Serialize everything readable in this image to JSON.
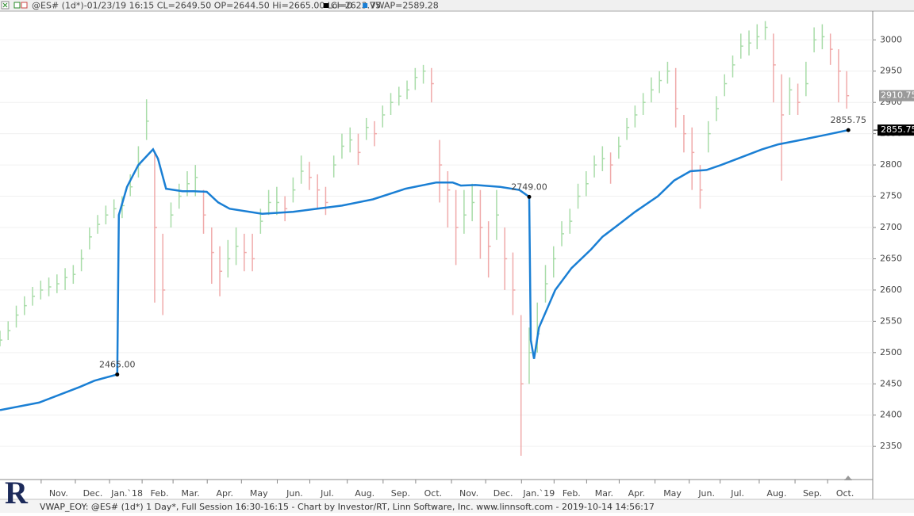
{
  "header": {
    "status": "@ES# (1d*)-01/23/19 16:15 CL=2649.50 OP=2644.50 Hi=2665.00 Lo=2623.75",
    "legend": [
      {
        "label": "CI=0",
        "color": "#000000"
      },
      {
        "label": "VWAP=2589.28",
        "color": "#1a7fd4"
      }
    ]
  },
  "footer": {
    "logo": "R",
    "caption": "VWAP_EOY: @ES# (1d*) 1 Day*, Full Session 16:30-16:15 - Chart by Investor/RT, Linn Software, Inc. www.linnsoft.com - 2019-10-14 14:56:17"
  },
  "chart_data": {
    "type": "ohlc",
    "grid": true,
    "xlim": [
      0,
      536
    ],
    "ylim": [
      2297,
      3046
    ],
    "yticks": [
      2350,
      2400,
      2450,
      2500,
      2550,
      2600,
      2650,
      2700,
      2750,
      2800,
      2850,
      2900,
      2950,
      3000
    ],
    "xticks": [
      {
        "value": 36,
        "label": "Nov."
      },
      {
        "value": 57,
        "label": "Dec."
      },
      {
        "value": 78,
        "label": "Jan.`18"
      },
      {
        "value": 98,
        "label": "Feb."
      },
      {
        "value": 117,
        "label": "Mar."
      },
      {
        "value": 138,
        "label": "Apr."
      },
      {
        "value": 159,
        "label": "May"
      },
      {
        "value": 181,
        "label": "Jun."
      },
      {
        "value": 201,
        "label": "Jul."
      },
      {
        "value": 224,
        "label": "Aug."
      },
      {
        "value": 246,
        "label": "Sep."
      },
      {
        "value": 266,
        "label": "Oct."
      },
      {
        "value": 288,
        "label": "Nov."
      },
      {
        "value": 309,
        "label": "Dec."
      },
      {
        "value": 331,
        "label": "Jan.`19"
      },
      {
        "value": 351,
        "label": "Feb."
      },
      {
        "value": 371,
        "label": "Mar."
      },
      {
        "value": 391,
        "label": "Apr."
      },
      {
        "value": 413,
        "label": "May"
      },
      {
        "value": 434,
        "label": "Jun."
      },
      {
        "value": 453,
        "label": "Jul."
      },
      {
        "value": 477,
        "label": "Aug."
      },
      {
        "value": 499,
        "label": "Sep."
      },
      {
        "value": 519,
        "label": "Oct."
      }
    ],
    "price": {
      "up_color": "#a8dca8",
      "down_color": "#f0aaaa",
      "x": [
        0,
        5,
        10,
        15,
        20,
        25,
        30,
        35,
        40,
        45,
        50,
        55,
        60,
        65,
        70,
        75,
        80,
        85,
        90,
        95,
        100,
        105,
        110,
        115,
        120,
        125,
        130,
        135,
        140,
        145,
        150,
        155,
        160,
        165,
        170,
        175,
        180,
        185,
        190,
        195,
        200,
        205,
        210,
        215,
        220,
        225,
        230,
        235,
        240,
        245,
        250,
        255,
        260,
        265,
        270,
        275,
        280,
        285,
        290,
        295,
        300,
        305,
        310,
        315,
        320,
        325,
        330,
        335,
        340,
        345,
        350,
        355,
        360,
        365,
        370,
        375,
        380,
        385,
        390,
        395,
        400,
        405,
        410,
        415,
        420,
        425,
        430,
        435,
        440,
        445,
        450,
        455,
        460,
        465,
        470,
        475,
        480,
        485,
        490,
        495,
        500,
        505,
        510,
        515,
        520
      ],
      "high": [
        2535,
        2550,
        2575,
        2590,
        2605,
        2615,
        2620,
        2625,
        2635,
        2640,
        2665,
        2700,
        2720,
        2735,
        2745,
        2750,
        2785,
        2830,
        2905,
        2820,
        2690,
        2740,
        2770,
        2790,
        2800,
        2760,
        2700,
        2670,
        2680,
        2700,
        2690,
        2690,
        2730,
        2760,
        2765,
        2750,
        2780,
        2815,
        2805,
        2785,
        2765,
        2815,
        2850,
        2860,
        2850,
        2875,
        2870,
        2895,
        2915,
        2925,
        2935,
        2955,
        2960,
        2955,
        2840,
        2790,
        2760,
        2760,
        2770,
        2760,
        2710,
        2760,
        2700,
        2660,
        2560,
        2540,
        2580,
        2640,
        2670,
        2710,
        2730,
        2770,
        2790,
        2815,
        2830,
        2820,
        2845,
        2875,
        2895,
        2915,
        2940,
        2950,
        2965,
        2955,
        2880,
        2860,
        2800,
        2870,
        2910,
        2945,
        2975,
        3010,
        3015,
        3025,
        3030,
        3010,
        2945,
        2940,
        2930,
        2965,
        3020,
        3025,
        3010,
        2985,
        2950
      ],
      "low": [
        2510,
        2520,
        2540,
        2560,
        2575,
        2585,
        2590,
        2595,
        2600,
        2610,
        2630,
        2665,
        2690,
        2705,
        2715,
        2715,
        2750,
        2780,
        2840,
        2580,
        2560,
        2700,
        2730,
        2750,
        2750,
        2690,
        2610,
        2590,
        2620,
        2640,
        2630,
        2630,
        2690,
        2720,
        2720,
        2710,
        2740,
        2770,
        2760,
        2730,
        2720,
        2780,
        2810,
        2820,
        2800,
        2840,
        2830,
        2860,
        2880,
        2895,
        2905,
        2920,
        2930,
        2900,
        2740,
        2700,
        2640,
        2690,
        2710,
        2650,
        2620,
        2680,
        2600,
        2560,
        2335,
        2450,
        2500,
        2580,
        2620,
        2670,
        2690,
        2730,
        2750,
        2780,
        2790,
        2770,
        2810,
        2840,
        2860,
        2880,
        2900,
        2915,
        2930,
        2860,
        2820,
        2760,
        2730,
        2820,
        2870,
        2910,
        2940,
        2970,
        2975,
        2985,
        3000,
        2900,
        2775,
        2880,
        2880,
        2910,
        2980,
        2985,
        2960,
        2900,
        2890
      ],
      "close": [
        2520,
        2535,
        2560,
        2575,
        2590,
        2600,
        2605,
        2610,
        2620,
        2625,
        2650,
        2685,
        2705,
        2720,
        2730,
        2735,
        2765,
        2800,
        2870,
        2700,
        2600,
        2720,
        2750,
        2770,
        2780,
        2720,
        2660,
        2630,
        2650,
        2670,
        2660,
        2650,
        2710,
        2740,
        2740,
        2730,
        2760,
        2790,
        2780,
        2760,
        2740,
        2800,
        2830,
        2840,
        2820,
        2860,
        2850,
        2880,
        2900,
        2910,
        2920,
        2940,
        2950,
        2930,
        2800,
        2760,
        2700,
        2720,
        2740,
        2700,
        2670,
        2720,
        2650,
        2600,
        2450,
        2500,
        2530,
        2610,
        2650,
        2690,
        2710,
        2750,
        2770,
        2800,
        2810,
        2800,
        2830,
        2860,
        2880,
        2900,
        2920,
        2935,
        2950,
        2890,
        2850,
        2820,
        2760,
        2850,
        2890,
        2930,
        2960,
        2990,
        2995,
        3005,
        3020,
        2960,
        2880,
        2920,
        2900,
        2930,
        3000,
        3005,
        2985,
        2950,
        2910.75
      ]
    },
    "vwap": {
      "name": "VWAP",
      "color": "#1a7fd4",
      "x": [
        0,
        24,
        49,
        58,
        72,
        73,
        78,
        85,
        94,
        97,
        102,
        112,
        119,
        127,
        134,
        141,
        161,
        180,
        195,
        210,
        229,
        249,
        268,
        278,
        283,
        292,
        307,
        319,
        325,
        326,
        328,
        331,
        341,
        351,
        363,
        370,
        380,
        390,
        404,
        414,
        424,
        434,
        443,
        453,
        468,
        478,
        492,
        507,
        521
      ],
      "values": [
        2408,
        2420,
        2445,
        2455,
        2465,
        2720,
        2765,
        2800,
        2825,
        2810,
        2762,
        2758,
        2758,
        2757,
        2740,
        2730,
        2722,
        2725,
        2730,
        2735,
        2745,
        2762,
        2772,
        2772,
        2767,
        2768,
        2765,
        2760,
        2749,
        2520,
        2490,
        2540,
        2600,
        2635,
        2665,
        2685,
        2705,
        2725,
        2750,
        2775,
        2790,
        2792,
        2800,
        2810,
        2825,
        2833,
        2840,
        2848,
        2855.75
      ],
      "value_labels": [
        null,
        null,
        null,
        null,
        "2465.00",
        null,
        null,
        null,
        null,
        null,
        null,
        null,
        null,
        null,
        null,
        null,
        null,
        null,
        null,
        null,
        null,
        null,
        null,
        null,
        null,
        null,
        null,
        null,
        "2749.00",
        null,
        null,
        null,
        null,
        null,
        null,
        null,
        null,
        null,
        null,
        null,
        null,
        null,
        null,
        null,
        null,
        null,
        null,
        null,
        "2855.75"
      ]
    }
  }
}
